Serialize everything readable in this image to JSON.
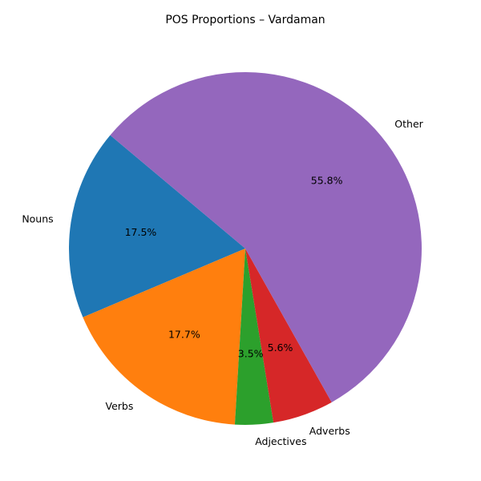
{
  "chart_data": {
    "type": "pie",
    "title": "POS Proportions – Vardaman",
    "categories": [
      "Nouns",
      "Verbs",
      "Adjectives",
      "Adverbs",
      "Other"
    ],
    "values": [
      17.5,
      17.7,
      3.5,
      5.6,
      55.8
    ],
    "value_labels": [
      "17.5%",
      "17.7%",
      "3.5%",
      "5.6%",
      "55.8%"
    ],
    "colors": [
      "#1f77b4",
      "#ff7f0e",
      "#2ca02c",
      "#d62728",
      "#9467bd"
    ],
    "start_angle_deg": 140,
    "direction": "counterclockwise",
    "legend": "none"
  }
}
